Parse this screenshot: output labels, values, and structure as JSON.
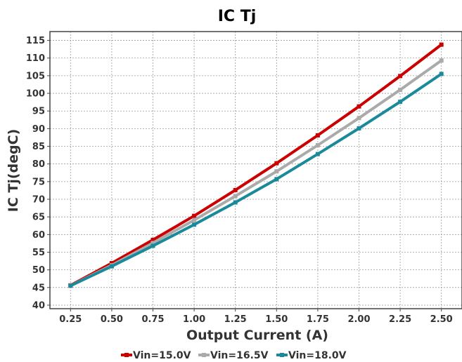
{
  "chart_data": {
    "type": "line",
    "title": "IC Tj",
    "xlabel": "Output Current (A)",
    "ylabel": "IC Tj(degC)",
    "x": [
      0.25,
      0.5,
      0.75,
      1.0,
      1.25,
      1.5,
      1.75,
      2.0,
      2.25,
      2.5
    ],
    "x_tick_labels": [
      "0.25",
      "0.50",
      "0.75",
      "1.00",
      "1.25",
      "1.50",
      "1.75",
      "2.00",
      "2.25",
      "2.50"
    ],
    "y_ticks": [
      40,
      45,
      50,
      55,
      60,
      65,
      70,
      75,
      80,
      85,
      90,
      95,
      100,
      105,
      110,
      115
    ],
    "y_tick_labels": [
      "40",
      "45",
      "50",
      "55",
      "60",
      "65",
      "70",
      "75",
      "80",
      "85",
      "90",
      "95",
      "100",
      "105",
      "110",
      "115"
    ],
    "xlim": [
      0.125,
      2.625
    ],
    "ylim": [
      39,
      117.5
    ],
    "grid": true,
    "legend_position": "bottom",
    "series": [
      {
        "name": "Vin=15.0V",
        "color": "#cc0000",
        "values": [
          45.6,
          51.9,
          58.5,
          65.3,
          72.6,
          80.2,
          88.1,
          96.3,
          104.9,
          113.8
        ]
      },
      {
        "name": "Vin=16.5V",
        "color": "#aaaaaa",
        "values": [
          45.5,
          51.3,
          57.6,
          64.1,
          70.9,
          77.9,
          85.3,
          93.0,
          101.0,
          109.3
        ]
      },
      {
        "name": "Vin=18.0V",
        "color": "#1a8a9a",
        "values": [
          45.5,
          51.0,
          56.8,
          62.8,
          69.1,
          75.7,
          82.8,
          90.1,
          97.6,
          105.5
        ]
      }
    ]
  }
}
